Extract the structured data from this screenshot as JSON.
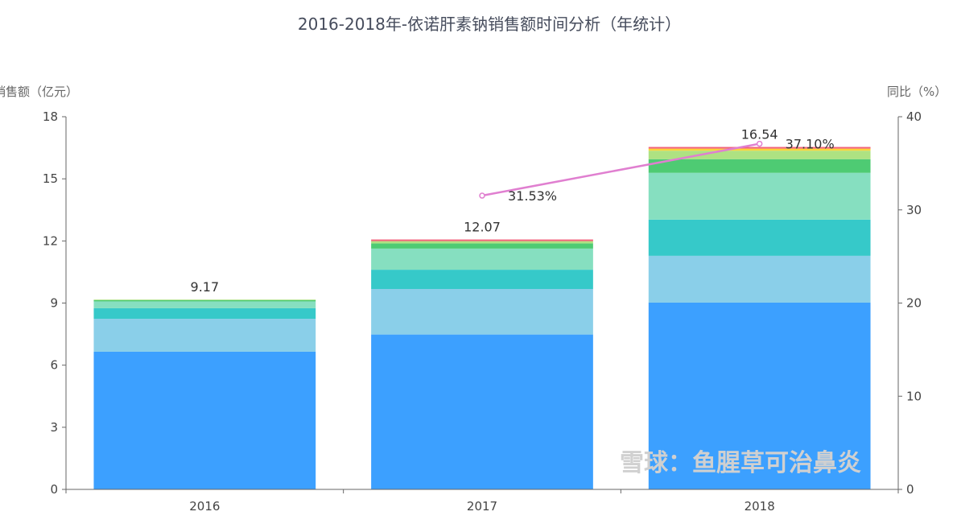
{
  "chart_data": {
    "type": "bar",
    "title": "2016-2018年-依诺肝素钠销售额时间分析（年统计）",
    "ylabel": "销售额（亿元）",
    "y2label": "同比（%）",
    "categories": [
      "2016",
      "2017",
      "2018"
    ],
    "ylim": [
      0,
      18
    ],
    "yticks": [
      0,
      3,
      6,
      9,
      12,
      15,
      18
    ],
    "y2lim": [
      0,
      40
    ],
    "y2ticks": [
      0,
      10,
      20,
      30,
      40
    ],
    "stacked": true,
    "grid": false,
    "series": [
      {
        "color": "#3ca0ff",
        "values": [
          6.65,
          7.48,
          9.02
        ]
      },
      {
        "color": "#8acfe9",
        "values": [
          1.59,
          2.2,
          2.26
        ]
      },
      {
        "color": "#36c9c9",
        "values": [
          0.51,
          0.93,
          1.75
        ]
      },
      {
        "color": "#86dfc0",
        "values": [
          0.33,
          1.02,
          2.26
        ]
      },
      {
        "color": "#4ecb73",
        "values": [
          0.06,
          0.25,
          0.66
        ]
      },
      {
        "color": "#aee282",
        "values": [
          0.03,
          0.11,
          0.41
        ]
      },
      {
        "color": "#fbd437",
        "values": [
          0,
          0,
          0.1
        ]
      },
      {
        "color": "#f2637b",
        "values": [
          0,
          0.08,
          0.08
        ]
      }
    ],
    "totals": [
      "9.17",
      "12.07",
      "16.54"
    ],
    "line": {
      "axis": "right",
      "color": "#e07fd0",
      "values": [
        null,
        31.53,
        37.1
      ],
      "labels": [
        "",
        "31.53%",
        "37.10%"
      ]
    }
  },
  "watermark": "雪球：鱼腥草可治鼻炎"
}
